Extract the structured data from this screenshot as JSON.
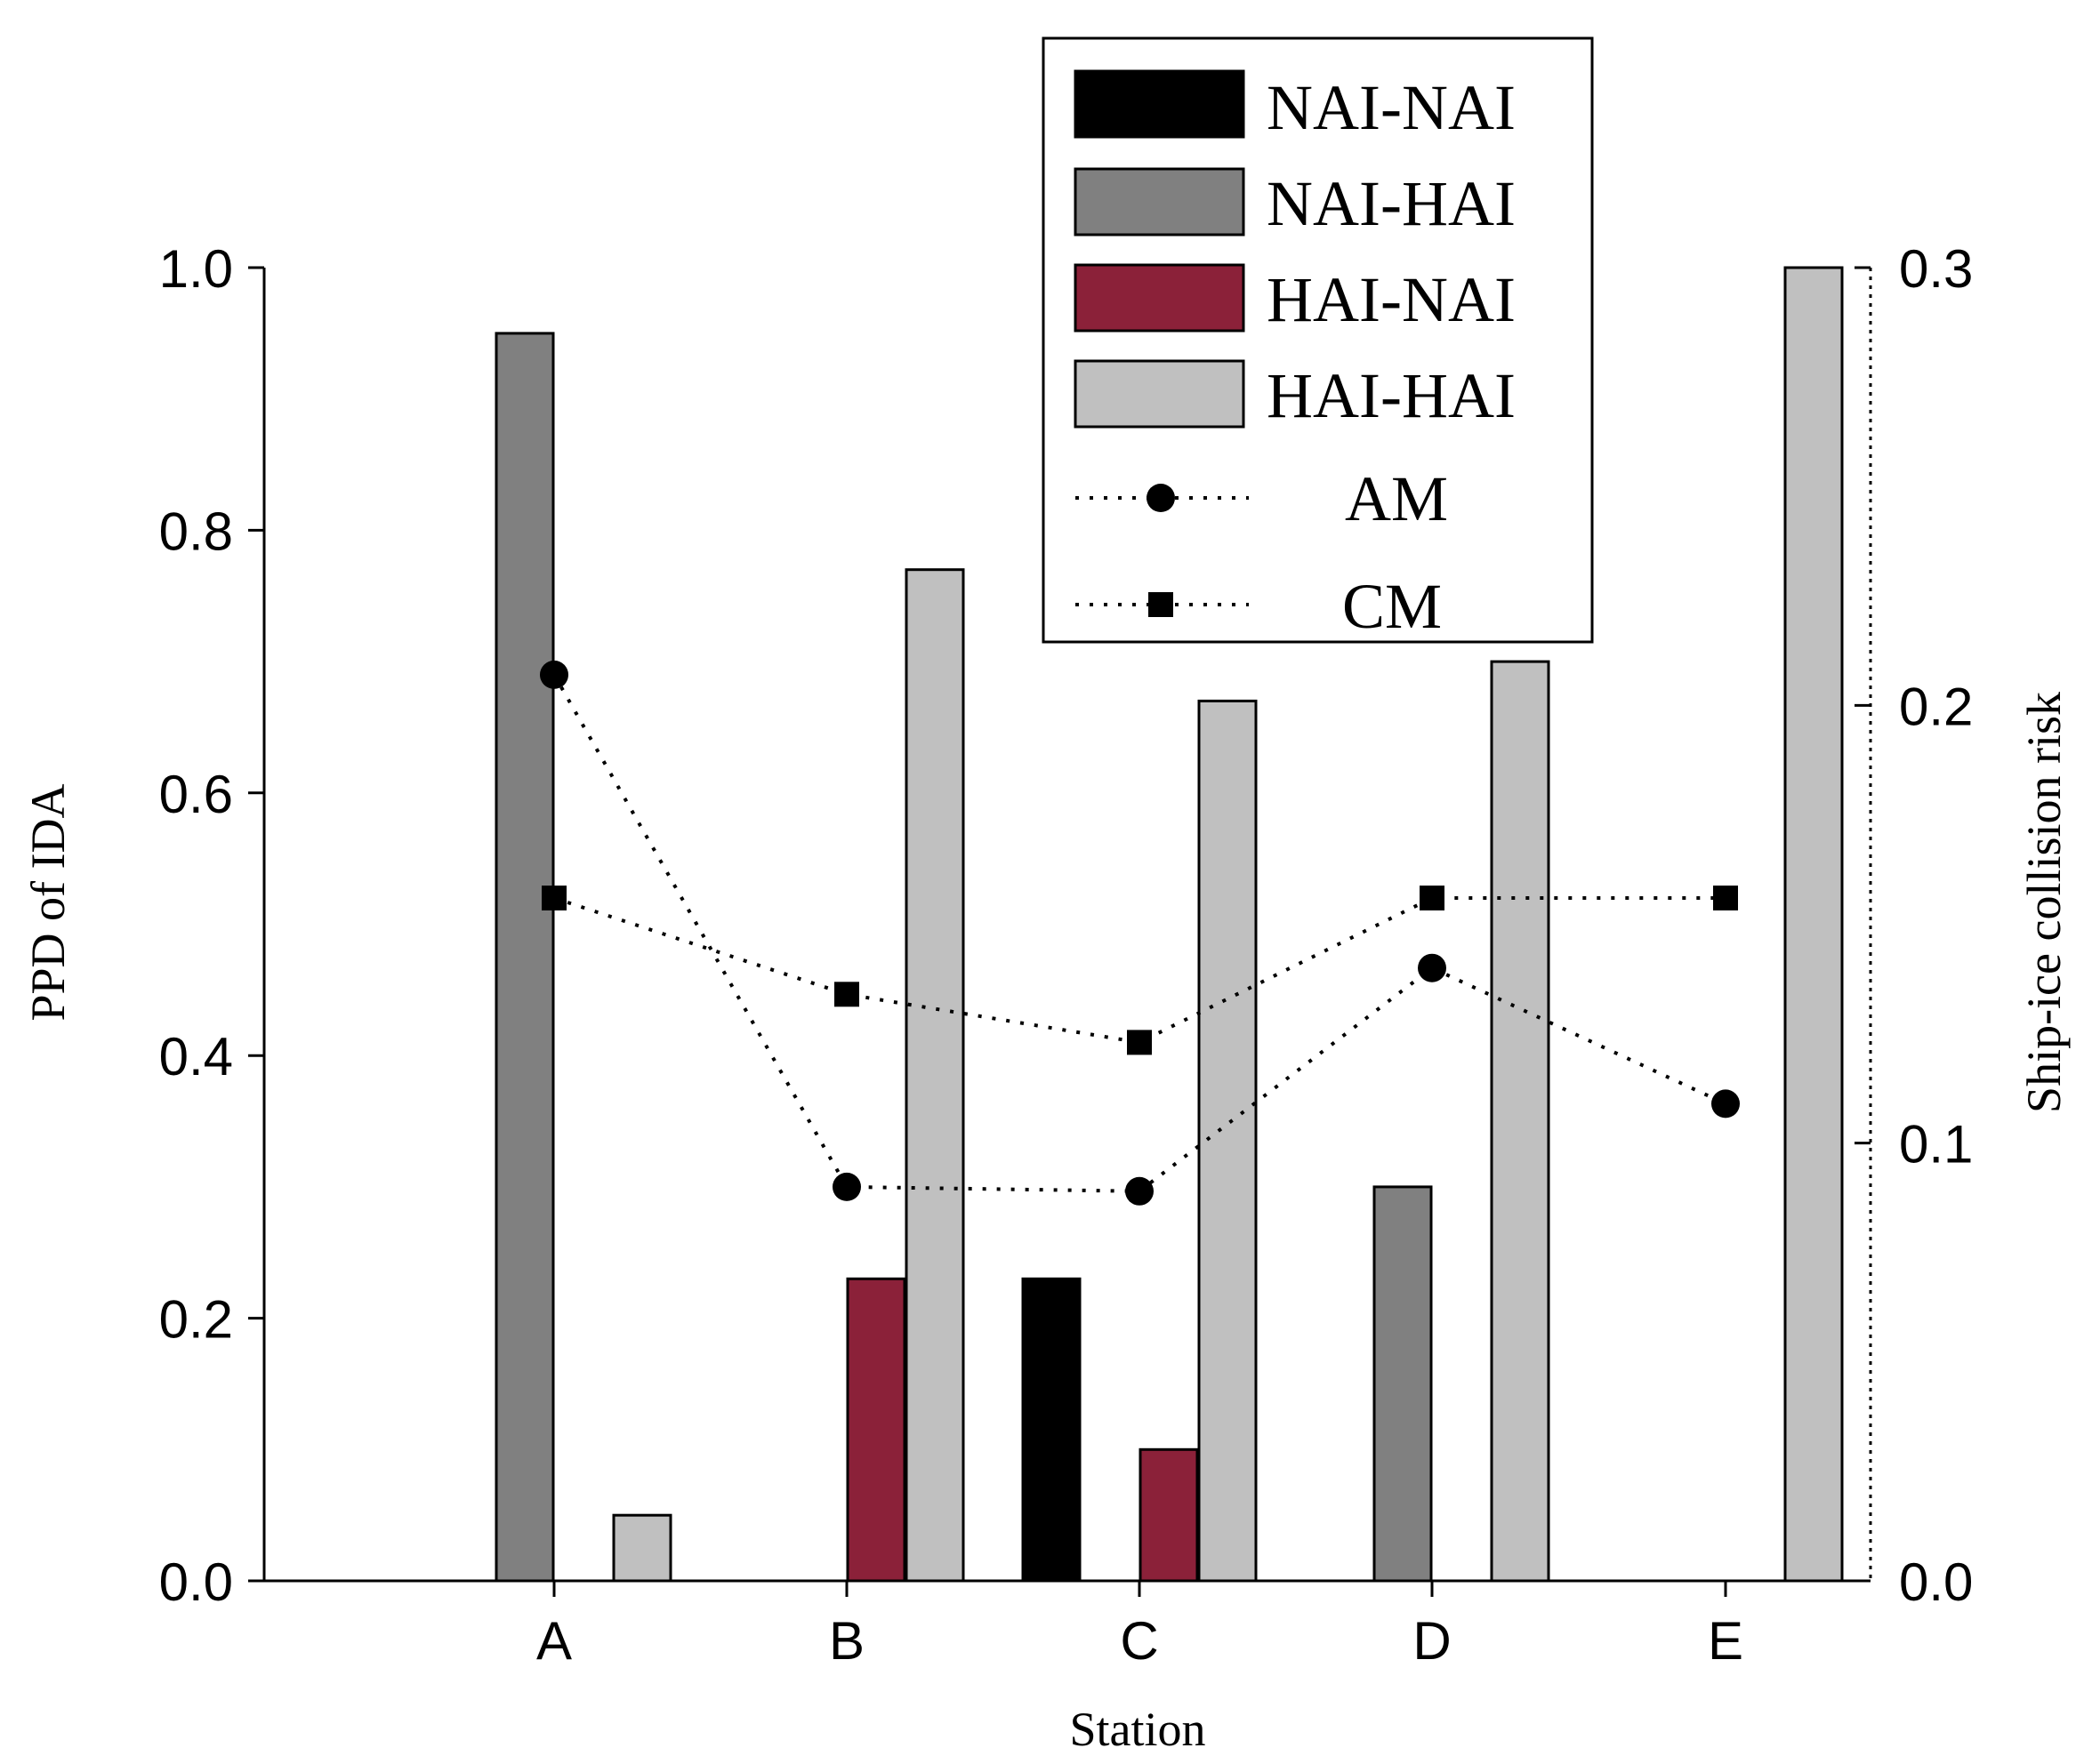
{
  "chart_data": {
    "type": "bar",
    "title": "",
    "xlabel": "Station",
    "ylabel": "PPD of IDA",
    "y2label": "Ship-ice collision risk",
    "categories": [
      "A",
      "B",
      "C",
      "D",
      "E"
    ],
    "ylim": [
      0,
      1.0
    ],
    "y2lim": [
      0,
      0.3
    ],
    "yticks": [
      "0.0",
      "0.2",
      "0.4",
      "0.6",
      "0.8",
      "1.0"
    ],
    "y2ticks": [
      "0.0",
      "0.1",
      "0.2",
      "0.3"
    ],
    "grid": false,
    "legend_position": "top-right",
    "series": [
      {
        "name": "NAI-NAI",
        "color": "#000000",
        "values": [
          0,
          0,
          0.23,
          0,
          0
        ]
      },
      {
        "name": "NAI-HAI",
        "color": "#808080",
        "values": [
          0.95,
          0,
          0,
          0.3,
          0
        ]
      },
      {
        "name": "HAI-NAI",
        "color": "#8b2139",
        "values": [
          0,
          0.23,
          0.1,
          0,
          0
        ]
      },
      {
        "name": "HAI-HAI",
        "color": "#c0c0c0",
        "values": [
          0.05,
          0.77,
          0.67,
          0.7,
          1.0
        ]
      }
    ],
    "line_series": [
      {
        "name": "AM",
        "marker": "circle",
        "axis": "right",
        "values": [
          0.207,
          0.09,
          0.089,
          0.14,
          0.109
        ]
      },
      {
        "name": "CM",
        "marker": "square",
        "axis": "right",
        "values": [
          0.156,
          0.134,
          0.123,
          0.156,
          0.156
        ]
      }
    ]
  }
}
